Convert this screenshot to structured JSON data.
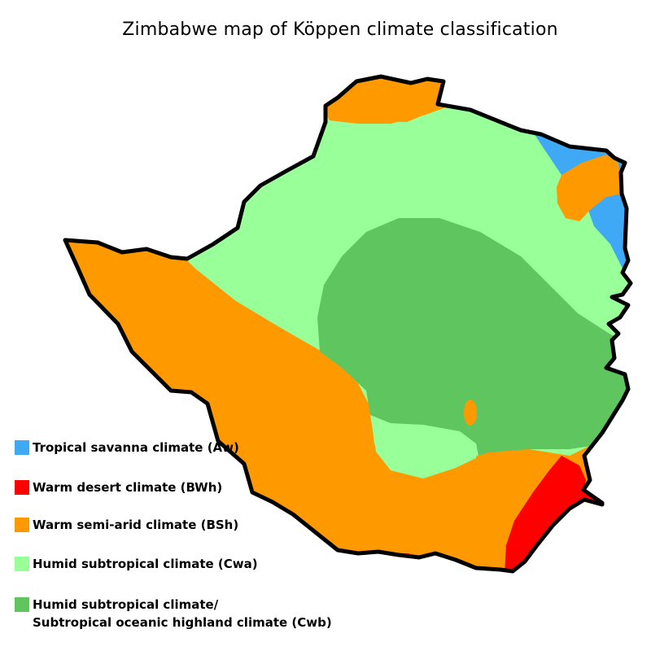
{
  "title": "Zimbabwe map of Köppen climate classification",
  "legend": [
    {
      "color": "#3fa9f5",
      "label": "Tropical savanna climate (Aw)"
    },
    {
      "color": "#ff0000",
      "label": "Warm desert climate (BWh)"
    },
    {
      "color": "#ff9900",
      "label": "Warm semi-arid climate (BSh)"
    },
    {
      "color": "#99ff99",
      "label": "Humid subtropical climate (Cwa)"
    },
    {
      "color": "#5fc65f",
      "label": "Humid subtropical climate/\nSubtropical oceanic highland climate (Cwb)"
    }
  ],
  "colors": {
    "Aw": "#3fa9f5",
    "BWh": "#ff0000",
    "BSh": "#ff9900",
    "Cwa": "#99ff99",
    "Cwb": "#5fc65f",
    "border": "#000000"
  }
}
